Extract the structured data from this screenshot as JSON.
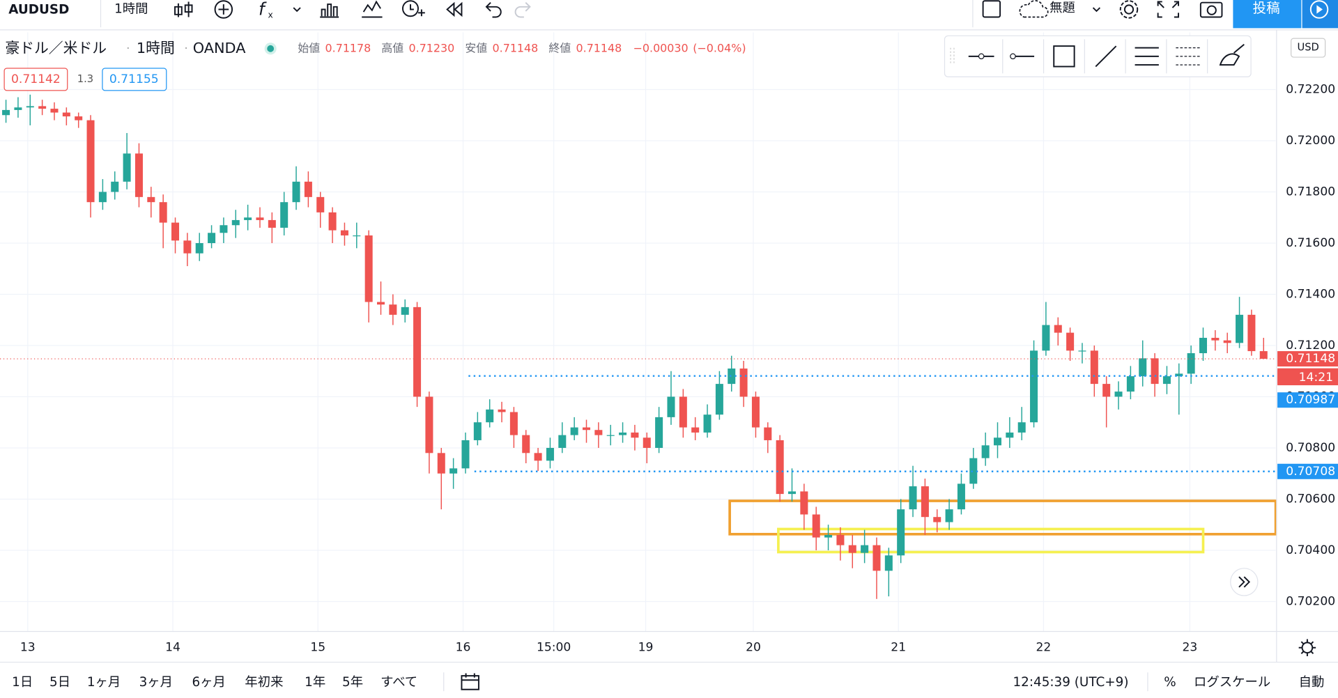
{
  "toolbar": {
    "symbol": "AUDUSD",
    "interval": "1時間",
    "layout_title": "無題",
    "publish": "投稿"
  },
  "legend": {
    "name": "豪ドル／米ドル",
    "interval": "1時間",
    "source": "OANDA",
    "open_label": "始値",
    "open": "0.71178",
    "high_label": "高値",
    "high": "0.71230",
    "low_label": "安値",
    "low": "0.71148",
    "close_label": "終値",
    "close": "0.71148",
    "change": "−0.00030",
    "change_pct": "(−0.04%)"
  },
  "quotes": {
    "bid": "0.71142",
    "spread": "1.3",
    "ask": "0.71155"
  },
  "currency": "USD",
  "countdown": "14:21",
  "chart_data": {
    "type": "candlestick",
    "open": [
      0.721,
      0.7212,
      0.7213,
      0.72135,
      0.72125,
      0.7211,
      0.72095,
      0.7208,
      0.7176,
      0.718,
      0.7184,
      0.7195,
      0.7178,
      0.7176,
      0.7168,
      0.7161,
      0.7156,
      0.716,
      0.7164,
      0.7167,
      0.7169,
      0.717,
      0.7169,
      0.7166,
      0.7176,
      0.7184,
      0.7178,
      0.7172,
      0.7165,
      0.7163,
      0.7163,
      0.7137,
      0.7136,
      0.7132,
      0.7135,
      0.71,
      0.7078,
      0.707,
      0.7072,
      0.7083,
      0.709,
      0.7095,
      0.7094,
      0.7085,
      0.7078,
      0.7075,
      0.708,
      0.7085,
      0.7088,
      0.7087,
      0.7085,
      0.7085,
      0.7086,
      0.7084,
      0.708,
      0.7092,
      0.71,
      0.7088,
      0.7086,
      0.7093,
      0.7105,
      0.7111,
      0.71,
      0.7088,
      0.7083,
      0.7062,
      0.7063,
      0.7054,
      0.7045,
      0.7046,
      0.7042,
      0.7039,
      0.7042,
      0.7032,
      0.7038,
      0.7056,
      0.7065,
      0.7053,
      0.7051,
      0.7056,
      0.7066,
      0.7076,
      0.7081,
      0.7084,
      0.7086,
      0.709,
      0.7118,
      0.7128,
      0.7125,
      0.7118,
      0.7118,
      0.7105,
      0.71,
      0.7102,
      0.7108,
      0.7115,
      0.7105,
      0.7108,
      0.7109,
      0.7117,
      0.7123,
      0.7122,
      0.7121,
      0.7132,
      0.71178
    ],
    "high": [
      0.7216,
      0.7217,
      0.7218,
      0.7216,
      0.7215,
      0.7213,
      0.7211,
      0.721,
      0.7185,
      0.7188,
      0.7203,
      0.7199,
      0.7182,
      0.7179,
      0.717,
      0.7164,
      0.7164,
      0.7167,
      0.717,
      0.7173,
      0.7175,
      0.7174,
      0.7172,
      0.718,
      0.719,
      0.7188,
      0.718,
      0.7174,
      0.7168,
      0.7168,
      0.7165,
      0.7145,
      0.714,
      0.7138,
      0.7137,
      0.7102,
      0.708,
      0.7076,
      0.7086,
      0.7094,
      0.7099,
      0.7098,
      0.7096,
      0.7087,
      0.708,
      0.7084,
      0.709,
      0.7092,
      0.7091,
      0.709,
      0.7089,
      0.709,
      0.7089,
      0.7086,
      0.7096,
      0.711,
      0.7103,
      0.7092,
      0.7097,
      0.711,
      0.7116,
      0.7114,
      0.7102,
      0.709,
      0.7085,
      0.7072,
      0.7066,
      0.7057,
      0.705,
      0.7049,
      0.7046,
      0.7048,
      0.7045,
      0.7041,
      0.706,
      0.7073,
      0.7068,
      0.7056,
      0.706,
      0.707,
      0.708,
      0.7086,
      0.709,
      0.7092,
      0.7096,
      0.7122,
      0.7137,
      0.7131,
      0.7127,
      0.7121,
      0.712,
      0.7108,
      0.7106,
      0.7112,
      0.7122,
      0.7117,
      0.7112,
      0.7113,
      0.712,
      0.7127,
      0.7126,
      0.7125,
      0.7139,
      0.7134,
      0.7123
    ],
    "low": [
      0.7207,
      0.7209,
      0.7206,
      0.721,
      0.7208,
      0.7206,
      0.7205,
      0.717,
      0.7173,
      0.7177,
      0.7181,
      0.7174,
      0.717,
      0.7158,
      0.7156,
      0.7151,
      0.7153,
      0.7158,
      0.716,
      0.7162,
      0.7165,
      0.7166,
      0.716,
      0.7163,
      0.7173,
      0.7174,
      0.7166,
      0.716,
      0.7159,
      0.7158,
      0.7129,
      0.7132,
      0.7128,
      0.7129,
      0.7096,
      0.707,
      0.7056,
      0.7064,
      0.707,
      0.7081,
      0.7088,
      0.709,
      0.708,
      0.7074,
      0.7071,
      0.7072,
      0.7078,
      0.7083,
      0.7082,
      0.708,
      0.7081,
      0.7082,
      0.7079,
      0.7074,
      0.7078,
      0.7089,
      0.7084,
      0.7083,
      0.7084,
      0.7091,
      0.7102,
      0.7096,
      0.7084,
      0.7078,
      0.7059,
      0.7059,
      0.7048,
      0.704,
      0.704,
      0.7036,
      0.7033,
      0.7035,
      0.7021,
      0.7022,
      0.7035,
      0.7053,
      0.7046,
      0.7047,
      0.7048,
      0.7054,
      0.7064,
      0.7073,
      0.7076,
      0.708,
      0.7083,
      0.7088,
      0.7116,
      0.712,
      0.7114,
      0.7113,
      0.71,
      0.7088,
      0.7095,
      0.7099,
      0.7104,
      0.71,
      0.7101,
      0.7093,
      0.7105,
      0.7114,
      0.7118,
      0.7117,
      0.7119,
      0.7116,
      0.71148
    ],
    "close": [
      0.7212,
      0.7213,
      0.72135,
      0.72125,
      0.7211,
      0.72095,
      0.7208,
      0.7176,
      0.718,
      0.7184,
      0.7195,
      0.7178,
      0.7176,
      0.7168,
      0.7161,
      0.7156,
      0.716,
      0.7164,
      0.7167,
      0.7169,
      0.717,
      0.7169,
      0.7166,
      0.7176,
      0.7184,
      0.7178,
      0.7172,
      0.7165,
      0.7163,
      0.7163,
      0.7137,
      0.7136,
      0.7132,
      0.7135,
      0.71,
      0.7078,
      0.707,
      0.7072,
      0.7083,
      0.709,
      0.7095,
      0.7094,
      0.7085,
      0.7078,
      0.7075,
      0.708,
      0.7085,
      0.7088,
      0.7087,
      0.7085,
      0.7085,
      0.7086,
      0.7084,
      0.708,
      0.7092,
      0.71,
      0.7088,
      0.7086,
      0.7093,
      0.7105,
      0.7111,
      0.71,
      0.7088,
      0.7083,
      0.7062,
      0.7063,
      0.7054,
      0.7045,
      0.7046,
      0.7042,
      0.7039,
      0.7042,
      0.7032,
      0.7038,
      0.7056,
      0.7065,
      0.7053,
      0.7051,
      0.7056,
      0.7066,
      0.7076,
      0.7081,
      0.7084,
      0.7086,
      0.709,
      0.7118,
      0.7128,
      0.7125,
      0.7118,
      0.7118,
      0.7105,
      0.71,
      0.7102,
      0.7108,
      0.7115,
      0.7105,
      0.7108,
      0.7109,
      0.7117,
      0.7123,
      0.7122,
      0.7121,
      0.7132,
      0.71178,
      0.71148
    ],
    "up_color": "#26a69a",
    "down_color": "#ef5350",
    "xlim": [
      -0.494,
      105.0
    ],
    "xticks": [
      {
        "value": 1.8,
        "label": "13"
      },
      {
        "value": 13.8,
        "label": "14"
      },
      {
        "value": 25.8,
        "label": "15"
      },
      {
        "value": 37.8,
        "label": "16"
      },
      {
        "value": 45.3,
        "label": "15:00"
      },
      {
        "value": 52.9,
        "label": "19"
      },
      {
        "value": 61.8,
        "label": "20"
      },
      {
        "value": 73.8,
        "label": "21"
      },
      {
        "value": 85.8,
        "label": "22"
      },
      {
        "value": 97.9,
        "label": "23"
      }
    ],
    "ylim": [
      0.70083,
      0.72423
    ],
    "yticks": [
      {
        "value": 0.702,
        "label": "0.70200"
      },
      {
        "value": 0.704,
        "label": "0.70400"
      },
      {
        "value": 0.706,
        "label": "0.70600"
      },
      {
        "value": 0.708,
        "label": "0.70800"
      },
      {
        "value": 0.71,
        "label": "0.71000"
      },
      {
        "value": 0.712,
        "label": "0.71200"
      },
      {
        "value": 0.714,
        "label": "0.71400"
      },
      {
        "value": 0.716,
        "label": "0.71600"
      },
      {
        "value": 0.718,
        "label": "0.71800"
      },
      {
        "value": 0.72,
        "label": "0.72000"
      },
      {
        "value": 0.722,
        "label": "0.72200"
      }
    ],
    "grid": true,
    "hlines": [
      {
        "value": 0.71081,
        "start": 38.25,
        "color": "#2196f3",
        "label_color": "#ef5350"
      },
      {
        "value": 0.70708,
        "start": 38.74,
        "color": "#2196f3",
        "label_color": "#2196f3"
      }
    ],
    "price_markers": [
      {
        "value": 0.70987,
        "color": "#2196f3"
      }
    ],
    "zones": [
      {
        "x": [
          59.85,
          105.0
        ],
        "y": [
          0.70463,
          0.70593
        ],
        "color": "#f0a030"
      },
      {
        "x": [
          63.87,
          99.0
        ],
        "y": [
          0.70393,
          0.70483
        ],
        "color": "#f5f050"
      }
    ]
  },
  "bottom": {
    "ranges": [
      "1日",
      "5日",
      "1ヶ月",
      "3ヶ月",
      "6ヶ月",
      "年初来",
      "1年",
      "5年",
      "すべて"
    ],
    "clock": "12:45:39 (UTC+9)",
    "percent": "%",
    "log": "ログスケール",
    "auto": "自動"
  }
}
